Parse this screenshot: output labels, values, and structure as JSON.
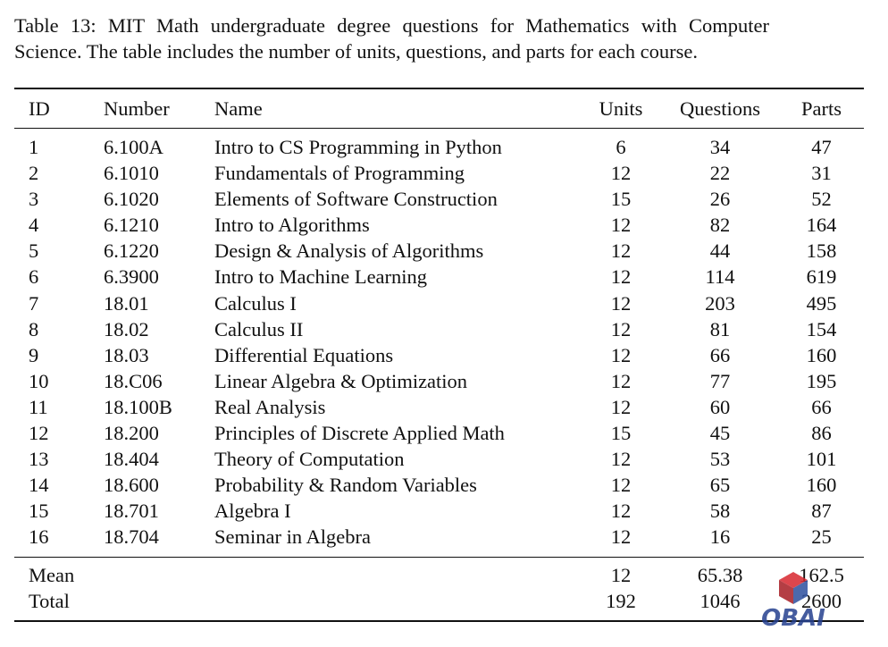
{
  "caption": "Table 13: MIT Math undergraduate degree questions for Mathematics with Computer Science. The table includes the number of units, questions, and parts for each course.",
  "table": {
    "header": [
      "ID",
      "Number",
      "Name",
      "Units",
      "Questions",
      "Parts"
    ],
    "rows": [
      [
        "1",
        "6.100A",
        "Intro to CS Programming in Python",
        "6",
        "34",
        "47"
      ],
      [
        "2",
        "6.1010",
        "Fundamentals of Programming",
        "12",
        "22",
        "31"
      ],
      [
        "3",
        "6.1020",
        "Elements of Software Construction",
        "15",
        "26",
        "52"
      ],
      [
        "4",
        "6.1210",
        "Intro to Algorithms",
        "12",
        "82",
        "164"
      ],
      [
        "5",
        "6.1220",
        "Design & Analysis of Algorithms",
        "12",
        "44",
        "158"
      ],
      [
        "6",
        "6.3900",
        "Intro to Machine Learning",
        "12",
        "114",
        "619"
      ],
      [
        "7",
        "18.01",
        "Calculus I",
        "12",
        "203",
        "495"
      ],
      [
        "8",
        "18.02",
        "Calculus II",
        "12",
        "81",
        "154"
      ],
      [
        "9",
        "18.03",
        "Differential Equations",
        "12",
        "66",
        "160"
      ],
      [
        "10",
        "18.C06",
        "Linear Algebra & Optimization",
        "12",
        "77",
        "195"
      ],
      [
        "11",
        "18.100B",
        "Real Analysis",
        "12",
        "60",
        "66"
      ],
      [
        "12",
        "18.200",
        "Principles of Discrete Applied Math",
        "15",
        "45",
        "86"
      ],
      [
        "13",
        "18.404",
        "Theory of Computation",
        "12",
        "53",
        "101"
      ],
      [
        "14",
        "18.600",
        "Probability & Random Variables",
        "12",
        "65",
        "160"
      ],
      [
        "15",
        "18.701",
        "Algebra I",
        "12",
        "58",
        "87"
      ],
      [
        "16",
        "18.704",
        "Seminar in Algebra",
        "12",
        "16",
        "25"
      ]
    ],
    "summary": [
      [
        "Mean",
        "",
        "",
        "12",
        "65.38",
        "162.5"
      ],
      [
        "Total",
        "",
        "",
        "192",
        "1046",
        "2600"
      ]
    ]
  },
  "watermark": "OBAI"
}
